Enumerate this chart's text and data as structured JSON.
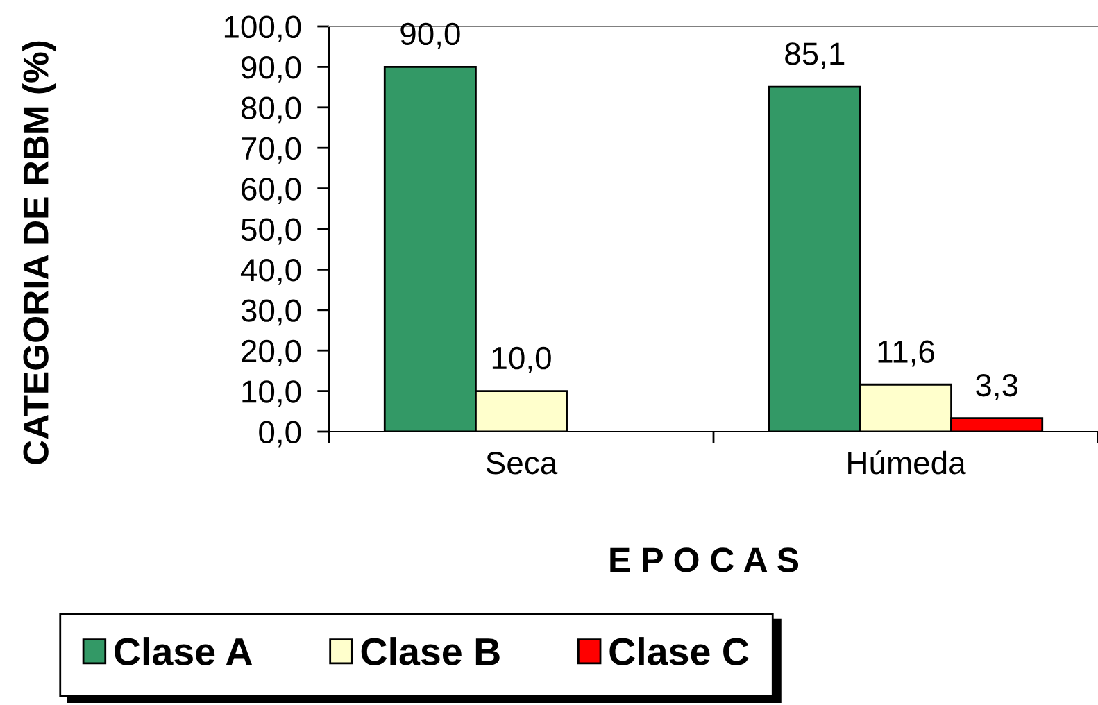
{
  "chart_data": {
    "type": "bar",
    "xlabel": "E P O C A S",
    "ylabel": "CATEGORIA DE RBM (%)",
    "categories": [
      "Seca",
      "Húmeda"
    ],
    "series": [
      {
        "name": "Clase A",
        "color": "#339966",
        "values": [
          90.0,
          85.1
        ],
        "value_labels": [
          "90,0",
          "85,1"
        ]
      },
      {
        "name": "Clase B",
        "color": "#ffffcc",
        "values": [
          10.0,
          11.6
        ],
        "value_labels": [
          "10,0",
          "11,6"
        ]
      },
      {
        "name": "Clase C",
        "color": "#ff0000",
        "values": [
          null,
          3.3
        ],
        "value_labels": [
          null,
          "3,3"
        ]
      }
    ],
    "ylim": [
      0,
      100
    ],
    "yticks": [
      {
        "value": 0,
        "label": "0,0"
      },
      {
        "value": 10,
        "label": "10,0"
      },
      {
        "value": 20,
        "label": "20,0"
      },
      {
        "value": 30,
        "label": "30,0"
      },
      {
        "value": 40,
        "label": "40,0"
      },
      {
        "value": 50,
        "label": "50,0"
      },
      {
        "value": 60,
        "label": "60,0"
      },
      {
        "value": 70,
        "label": "70,0"
      },
      {
        "value": 80,
        "label": "80,0"
      },
      {
        "value": 90,
        "label": "90,0"
      },
      {
        "value": 100,
        "label": "100,0"
      }
    ],
    "legend": "bottom"
  }
}
